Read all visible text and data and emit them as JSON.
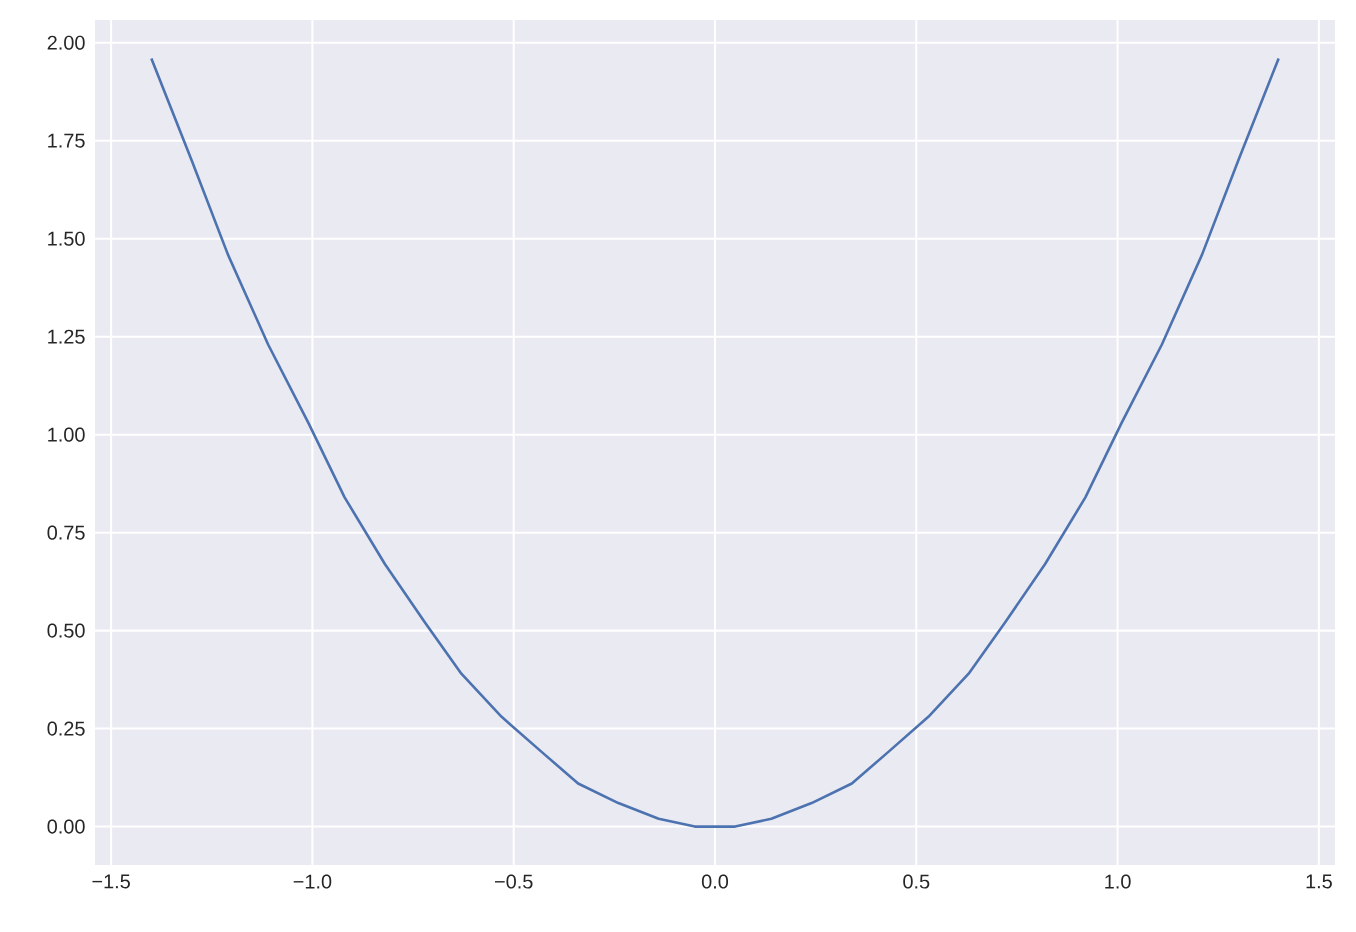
{
  "chart_data": {
    "type": "line",
    "x": [
      -1.4,
      -1.3,
      -1.21,
      -1.11,
      -1.01,
      -0.92,
      -0.82,
      -0.72,
      -0.63,
      -0.53,
      -0.43,
      -0.34,
      -0.24,
      -0.14,
      -0.05,
      0.05,
      0.14,
      0.24,
      0.34,
      0.43,
      0.53,
      0.63,
      0.72,
      0.82,
      0.92,
      1.01,
      1.11,
      1.21,
      1.3,
      1.4
    ],
    "series": [
      {
        "color": "#4c72b0",
        "values": [
          1.96,
          1.7,
          1.46,
          1.23,
          1.03,
          0.84,
          0.67,
          0.52,
          0.39,
          0.28,
          0.19,
          0.11,
          0.06,
          0.02,
          0.0,
          0.0,
          0.02,
          0.06,
          0.11,
          0.19,
          0.28,
          0.39,
          0.52,
          0.67,
          0.84,
          1.03,
          1.23,
          1.46,
          1.7,
          1.96
        ]
      }
    ],
    "xlim": [
      -1.54,
      1.54
    ],
    "ylim": [
      -0.098,
      2.058
    ],
    "xticks": [
      {
        "value": -1.5,
        "label": "−1.5"
      },
      {
        "value": -1.0,
        "label": "−1.0"
      },
      {
        "value": -0.5,
        "label": "−0.5"
      },
      {
        "value": 0.0,
        "label": "0.0"
      },
      {
        "value": 0.5,
        "label": "0.5"
      },
      {
        "value": 1.0,
        "label": "1.0"
      },
      {
        "value": 1.5,
        "label": "1.5"
      }
    ],
    "yticks": [
      {
        "value": 0,
        "label": "0.00"
      },
      {
        "value": 0.25,
        "label": "0.25"
      },
      {
        "value": 0.5,
        "label": "0.50"
      },
      {
        "value": 0.75,
        "label": "0.75"
      },
      {
        "value": 1.0,
        "label": "1.00"
      },
      {
        "value": 1.25,
        "label": "1.25"
      },
      {
        "value": 1.5,
        "label": "1.50"
      },
      {
        "value": 1.75,
        "label": "1.75"
      },
      {
        "value": 2.0,
        "label": "2.00"
      }
    ],
    "grid": true,
    "line_style": "solid"
  }
}
